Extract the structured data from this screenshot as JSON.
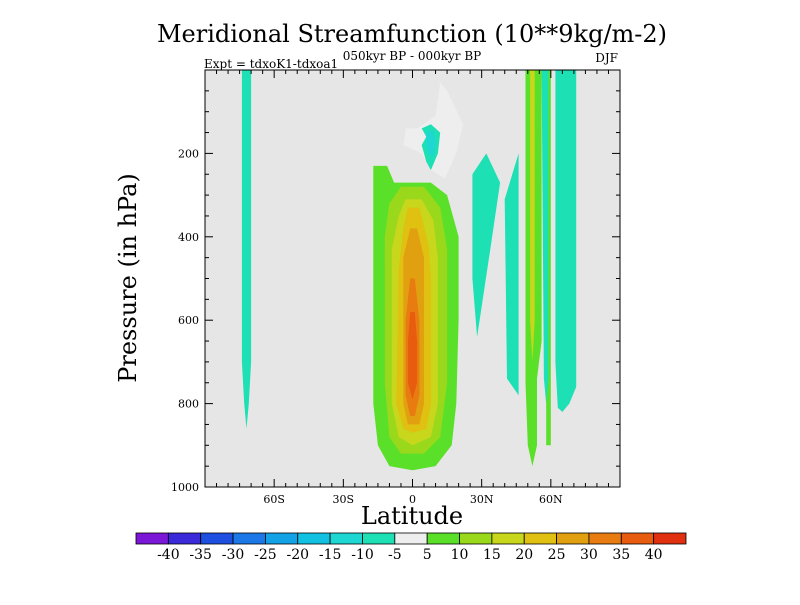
{
  "chart_data": {
    "type": "contour",
    "title": "Meridional Streamfunction (10**9kg/m-2)",
    "subtitle_left": "Expt = tdxoK1-tdxoa1",
    "subtitle_center": "050kyr BP - 000kyr BP",
    "subtitle_right": "DJF",
    "xlabel": "Latitude",
    "ylabel": "Pressure (in hPa)",
    "xlim": [
      -90,
      90
    ],
    "ylim": [
      1000,
      0
    ],
    "x_ticks": [
      {
        "value": -60,
        "label": "60S"
      },
      {
        "value": -30,
        "label": "30S"
      },
      {
        "value": 0,
        "label": "0"
      },
      {
        "value": 30,
        "label": "30N"
      },
      {
        "value": 60,
        "label": "60N"
      }
    ],
    "y_ticks": [
      {
        "value": 200,
        "label": "200"
      },
      {
        "value": 400,
        "label": "400"
      },
      {
        "value": 600,
        "label": "600"
      },
      {
        "value": 800,
        "label": "800"
      },
      {
        "value": 1000,
        "label": "1000"
      }
    ],
    "background_color": "#e6e6e6",
    "colorbar": {
      "labels": [
        "-40",
        "-35",
        "-30",
        "-25",
        "-20",
        "-15",
        "-10",
        "-5",
        "5",
        "10",
        "15",
        "20",
        "25",
        "30",
        "35",
        "40"
      ],
      "colors": [
        "#7b17d6",
        "#3a2ad9",
        "#1d4fe0",
        "#1b78e6",
        "#14a2e6",
        "#12c0e2",
        "#1ed6d2",
        "#1de0b4",
        "#eeeeee",
        "#5ae028",
        "#9ad81c",
        "#c8d61c",
        "#e0c010",
        "#e0a010",
        "#e87c10",
        "#e85c10",
        "#e03010"
      ]
    },
    "regions": [
      {
        "name": "sh-polar-negative",
        "level": -10,
        "outline": [
          [
            -74,
            0
          ],
          [
            -70,
            0
          ],
          [
            -70,
            700
          ],
          [
            -71,
            800
          ],
          [
            -72,
            860
          ],
          [
            -73,
            800
          ],
          [
            -74,
            700
          ]
        ]
      },
      {
        "name": "eq-cell-outer",
        "level": 5,
        "outline": [
          [
            -17,
            230
          ],
          [
            -11,
            230
          ],
          [
            -8,
            270
          ],
          [
            8,
            270
          ],
          [
            15,
            300
          ],
          [
            20,
            400
          ],
          [
            20,
            600
          ],
          [
            19,
            800
          ],
          [
            17,
            900
          ],
          [
            10,
            950
          ],
          [
            0,
            960
          ],
          [
            -10,
            950
          ],
          [
            -15,
            900
          ],
          [
            -17,
            800
          ],
          [
            -17,
            600
          ],
          [
            -17,
            400
          ]
        ]
      },
      {
        "name": "eq-cell-10",
        "level": 10,
        "outline": [
          [
            -5,
            280
          ],
          [
            5,
            280
          ],
          [
            12,
            330
          ],
          [
            15,
            430
          ],
          [
            15,
            750
          ],
          [
            12,
            880
          ],
          [
            5,
            920
          ],
          [
            -5,
            920
          ],
          [
            -10,
            880
          ],
          [
            -12,
            750
          ],
          [
            -12,
            400
          ],
          [
            -10,
            320
          ]
        ]
      },
      {
        "name": "eq-cell-15",
        "level": 15,
        "outline": [
          [
            -3,
            310
          ],
          [
            4,
            310
          ],
          [
            9,
            360
          ],
          [
            11,
            450
          ],
          [
            11,
            800
          ],
          [
            8,
            880
          ],
          [
            0,
            900
          ],
          [
            -6,
            880
          ],
          [
            -9,
            800
          ],
          [
            -9,
            430
          ],
          [
            -6,
            350
          ]
        ]
      },
      {
        "name": "eq-cell-20",
        "level": 20,
        "outline": [
          [
            -2,
            330
          ],
          [
            3,
            330
          ],
          [
            7,
            420
          ],
          [
            8,
            500
          ],
          [
            8,
            800
          ],
          [
            6,
            860
          ],
          [
            0,
            870
          ],
          [
            -4,
            860
          ],
          [
            -7,
            800
          ],
          [
            -6,
            480
          ],
          [
            -4,
            380
          ]
        ]
      },
      {
        "name": "eq-cell-25",
        "level": 25,
        "outline": [
          [
            -1,
            380
          ],
          [
            2,
            380
          ],
          [
            5,
            450
          ],
          [
            5,
            800
          ],
          [
            3,
            850
          ],
          [
            -2,
            850
          ],
          [
            -4,
            800
          ],
          [
            -4,
            450
          ]
        ]
      },
      {
        "name": "eq-cell-30",
        "level": 30,
        "outline": [
          [
            -1,
            500
          ],
          [
            1,
            500
          ],
          [
            3,
            600
          ],
          [
            3,
            780
          ],
          [
            1,
            830
          ],
          [
            -1,
            830
          ],
          [
            -3,
            780
          ],
          [
            -3,
            600
          ]
        ]
      },
      {
        "name": "eq-cell-35",
        "level": 35,
        "outline": [
          [
            -1,
            580
          ],
          [
            1,
            580
          ],
          [
            2,
            650
          ],
          [
            2,
            750
          ],
          [
            0,
            790
          ],
          [
            -2,
            750
          ],
          [
            -2,
            650
          ]
        ]
      },
      {
        "name": "upper-eq-negative-outer",
        "level": -5,
        "outline": [
          [
            -3,
            140
          ],
          [
            2,
            140
          ],
          [
            10,
            110
          ],
          [
            12,
            30
          ],
          [
            15,
            50
          ],
          [
            22,
            130
          ],
          [
            19,
            200
          ],
          [
            14,
            260
          ],
          [
            8,
            240
          ],
          [
            4,
            200
          ],
          [
            -4,
            180
          ],
          [
            -3,
            150
          ]
        ]
      },
      {
        "name": "upper-eq-negative-inner",
        "level": -10,
        "outline": [
          [
            4,
            140
          ],
          [
            8,
            130
          ],
          [
            12,
            150
          ],
          [
            11,
            200
          ],
          [
            8,
            240
          ],
          [
            6,
            220
          ],
          [
            4,
            180
          ],
          [
            6,
            160
          ]
        ]
      },
      {
        "name": "upper-eq-negative-core",
        "level": -15,
        "outline": [
          [
            6,
            150
          ],
          [
            9,
            145
          ],
          [
            10,
            175
          ],
          [
            9,
            210
          ],
          [
            7,
            200
          ],
          [
            6,
            180
          ]
        ]
      },
      {
        "name": "nh-negative-a",
        "level": -10,
        "outline": [
          [
            26,
            250
          ],
          [
            32,
            200
          ],
          [
            38,
            270
          ],
          [
            34,
            420
          ],
          [
            28,
            640
          ],
          [
            26,
            500
          ]
        ]
      },
      {
        "name": "nh-negative-b",
        "level": -10,
        "outline": [
          [
            40,
            310
          ],
          [
            46,
            200
          ],
          [
            46,
            780
          ],
          [
            41,
            740
          ]
        ]
      },
      {
        "name": "nh-positive-band",
        "level": 5,
        "outline": [
          [
            49,
            0
          ],
          [
            56,
            0
          ],
          [
            56,
            650
          ],
          [
            54,
            740
          ],
          [
            54,
            900
          ],
          [
            52,
            950
          ],
          [
            50,
            900
          ],
          [
            49,
            750
          ]
        ]
      },
      {
        "name": "nh-positive-band-inner",
        "level": 15,
        "outline": [
          [
            51,
            0
          ],
          [
            53,
            0
          ],
          [
            53,
            600
          ],
          [
            52,
            700
          ],
          [
            51,
            600
          ]
        ]
      },
      {
        "name": "nh-positive-band-2",
        "level": 5,
        "outline": [
          [
            58,
            0
          ],
          [
            60,
            0
          ],
          [
            60,
            900
          ],
          [
            58,
            900
          ]
        ]
      },
      {
        "name": "nh-negative-c",
        "level": -10,
        "outline": [
          [
            56,
            0
          ],
          [
            59,
            0
          ],
          [
            59,
            740
          ],
          [
            58,
            800
          ],
          [
            57,
            740
          ]
        ]
      },
      {
        "name": "nh-negative-d",
        "level": -10,
        "outline": [
          [
            62,
            0
          ],
          [
            71,
            0
          ],
          [
            71,
            760
          ],
          [
            68,
            800
          ],
          [
            65,
            820
          ],
          [
            63,
            810
          ],
          [
            62,
            700
          ]
        ]
      }
    ]
  }
}
